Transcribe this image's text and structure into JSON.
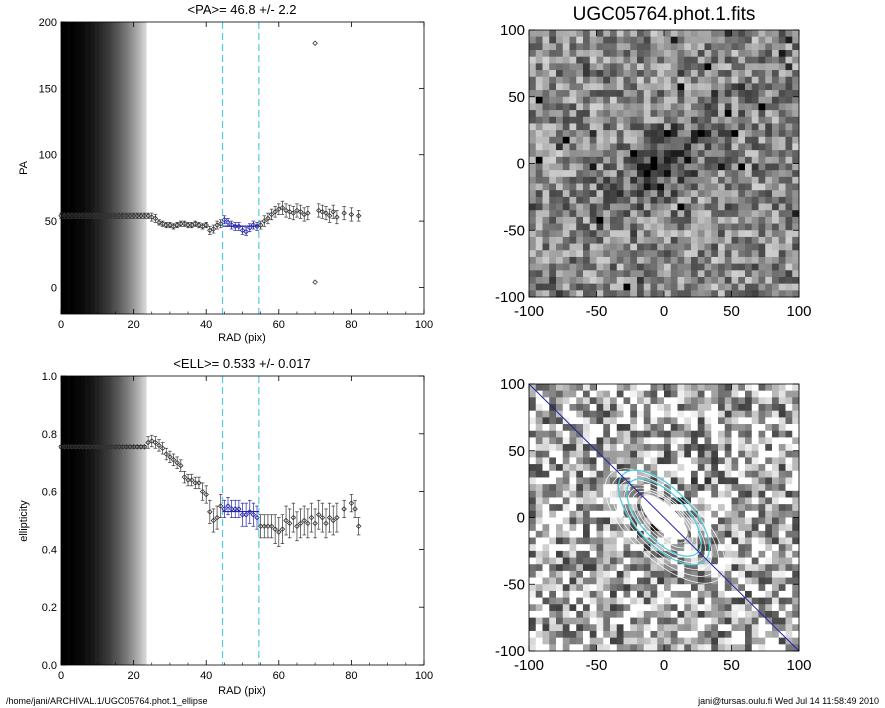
{
  "footer": {
    "path": "/home/jani/ARCHIVAL.1/UGC05764.phot.1_ellipse",
    "user_time": "jani@tursas.oulu.fi  Wed Jul 14 11:58:49 2010"
  },
  "colors": {
    "fit": "#2222aa",
    "guide": "#55ccdd",
    "data": "#333333"
  },
  "chart_data": [
    {
      "type": "scatter",
      "title": "<PA>=  46.8 +/-   2.2",
      "xlabel": "RAD (pix)",
      "ylabel": "PA",
      "xlim": [
        0,
        100
      ],
      "ylim": [
        -20,
        200
      ],
      "xticks": [
        0,
        20,
        40,
        60,
        80,
        100
      ],
      "yticks": [
        0,
        50,
        100,
        150,
        200
      ],
      "shaded_region_x": [
        0,
        23.5
      ],
      "guide_lines_x": [
        44.5,
        54.5
      ],
      "fit_range_x": [
        44.5,
        54.5
      ],
      "series": [
        {
          "x": [
            0,
            1,
            2,
            3,
            4,
            5,
            6,
            7,
            8,
            9,
            10,
            11,
            12,
            13,
            14,
            15,
            16,
            17,
            18,
            19,
            20,
            21,
            22,
            23,
            24,
            25,
            26,
            27,
            28,
            29,
            30,
            31,
            32,
            33,
            34,
            35,
            36,
            37,
            38,
            39,
            40,
            41,
            42,
            43,
            44,
            45,
            46,
            47,
            48,
            49,
            50,
            51,
            52,
            53,
            54,
            55,
            56,
            57,
            58,
            59,
            60,
            61,
            62,
            63,
            64,
            65,
            66,
            67,
            68,
            70,
            70,
            71,
            72,
            73,
            74,
            75,
            76,
            78,
            80,
            82
          ],
          "y": [
            54,
            54,
            54,
            54,
            54,
            54,
            54,
            54,
            54,
            54,
            54,
            54,
            54,
            54,
            54,
            54,
            54,
            54,
            54,
            54,
            54,
            54,
            54,
            54,
            54,
            53,
            52,
            49,
            48,
            47,
            47,
            46,
            47,
            48,
            48,
            47,
            47,
            48,
            47,
            46,
            47,
            43,
            44,
            47,
            48,
            51,
            49,
            47,
            46,
            46,
            43,
            42,
            45,
            47,
            46,
            47,
            50,
            52,
            55,
            57,
            59,
            60,
            58,
            57,
            56,
            58,
            57,
            55,
            56,
            184,
            4,
            58,
            57,
            56,
            54,
            57,
            53,
            56,
            55,
            54
          ],
          "err": [
            2,
            2,
            2,
            2,
            2,
            2,
            2,
            2,
            2,
            2,
            2,
            2,
            2,
            2,
            2,
            2,
            2,
            2,
            2,
            2,
            2,
            2,
            2,
            2,
            2,
            3,
            3,
            2,
            2,
            2,
            2,
            2,
            2,
            2,
            2,
            2,
            2,
            2,
            2,
            2,
            2,
            3,
            3,
            3,
            3,
            3,
            3,
            3,
            3,
            3,
            3,
            3,
            3,
            3,
            3,
            3,
            4,
            4,
            4,
            4,
            4,
            5,
            5,
            5,
            5,
            5,
            5,
            5,
            5,
            0,
            0,
            5,
            5,
            5,
            5,
            5,
            5,
            5,
            5,
            4
          ]
        }
      ]
    },
    {
      "type": "image",
      "title": "UGC05764.phot.1.fits",
      "xlim": [
        -100,
        100
      ],
      "ylim": [
        -100,
        100
      ],
      "xticks": [
        -100,
        -50,
        0,
        50,
        100
      ],
      "yticks": [
        -100,
        -50,
        0,
        50,
        100
      ]
    },
    {
      "type": "scatter",
      "title": "<ELL>= 0.533 +/-  0.017",
      "xlabel": "RAD (pix)",
      "ylabel": "ellipticity",
      "xlim": [
        0,
        100
      ],
      "ylim": [
        0,
        1
      ],
      "xticks": [
        0,
        20,
        40,
        60,
        80,
        100
      ],
      "yticks": [
        0.0,
        0.2,
        0.4,
        0.6,
        0.8,
        1.0
      ],
      "shaded_region_x": [
        0,
        23.5
      ],
      "guide_lines_x": [
        44.5,
        54.5
      ],
      "fit_range_x": [
        44.5,
        54.5
      ],
      "series": [
        {
          "x": [
            0,
            1,
            2,
            3,
            4,
            5,
            6,
            7,
            8,
            9,
            10,
            11,
            12,
            13,
            14,
            15,
            16,
            17,
            18,
            19,
            20,
            21,
            22,
            23,
            24,
            25,
            26,
            27,
            28,
            29,
            30,
            31,
            32,
            33,
            34,
            35,
            36,
            37,
            38,
            39,
            40,
            41,
            42,
            43,
            44,
            45,
            46,
            47,
            48,
            49,
            50,
            51,
            52,
            53,
            54,
            55,
            56,
            57,
            58,
            59,
            60,
            61,
            62,
            63,
            64,
            65,
            66,
            67,
            68,
            69,
            70,
            71,
            72,
            73,
            74,
            75,
            76,
            78,
            80,
            81,
            82
          ],
          "y": [
            0.755,
            0.755,
            0.755,
            0.755,
            0.755,
            0.755,
            0.755,
            0.755,
            0.755,
            0.755,
            0.755,
            0.755,
            0.755,
            0.755,
            0.755,
            0.755,
            0.755,
            0.755,
            0.755,
            0.755,
            0.755,
            0.755,
            0.755,
            0.755,
            0.77,
            0.775,
            0.77,
            0.76,
            0.75,
            0.73,
            0.72,
            0.71,
            0.7,
            0.69,
            0.65,
            0.64,
            0.64,
            0.63,
            0.63,
            0.6,
            0.59,
            0.53,
            0.5,
            0.51,
            0.55,
            0.54,
            0.55,
            0.54,
            0.54,
            0.54,
            0.52,
            0.52,
            0.53,
            0.52,
            0.51,
            0.48,
            0.48,
            0.48,
            0.48,
            0.47,
            0.46,
            0.47,
            0.5,
            0.49,
            0.51,
            0.48,
            0.49,
            0.5,
            0.49,
            0.51,
            0.49,
            0.52,
            0.51,
            0.49,
            0.51,
            0.5,
            0.51,
            0.54,
            0.56,
            0.54,
            0.48
          ],
          "err": [
            0.005,
            0.005,
            0.005,
            0.005,
            0.005,
            0.005,
            0.005,
            0.005,
            0.005,
            0.005,
            0.005,
            0.005,
            0.005,
            0.005,
            0.005,
            0.005,
            0.005,
            0.005,
            0.005,
            0.005,
            0.005,
            0.005,
            0.005,
            0.005,
            0.02,
            0.02,
            0.02,
            0.02,
            0.02,
            0.02,
            0.02,
            0.02,
            0.02,
            0.02,
            0.02,
            0.02,
            0.02,
            0.02,
            0.02,
            0.03,
            0.03,
            0.04,
            0.04,
            0.04,
            0.04,
            0.03,
            0.03,
            0.03,
            0.03,
            0.03,
            0.04,
            0.04,
            0.04,
            0.04,
            0.04,
            0.04,
            0.04,
            0.04,
            0.04,
            0.05,
            0.05,
            0.05,
            0.05,
            0.05,
            0.05,
            0.05,
            0.05,
            0.05,
            0.05,
            0.05,
            0.05,
            0.05,
            0.05,
            0.05,
            0.05,
            0.05,
            0.05,
            0.03,
            0.03,
            0.03,
            0.03
          ]
        }
      ]
    },
    {
      "type": "image",
      "title": "",
      "xlim": [
        -100,
        100
      ],
      "ylim": [
        -100,
        100
      ],
      "xticks": [
        -100,
        -50,
        0,
        50,
        100
      ],
      "yticks": [
        -100,
        -50,
        0,
        50,
        100
      ],
      "overlay": "isophote contours with fitted ellipses and major-axis line"
    }
  ]
}
